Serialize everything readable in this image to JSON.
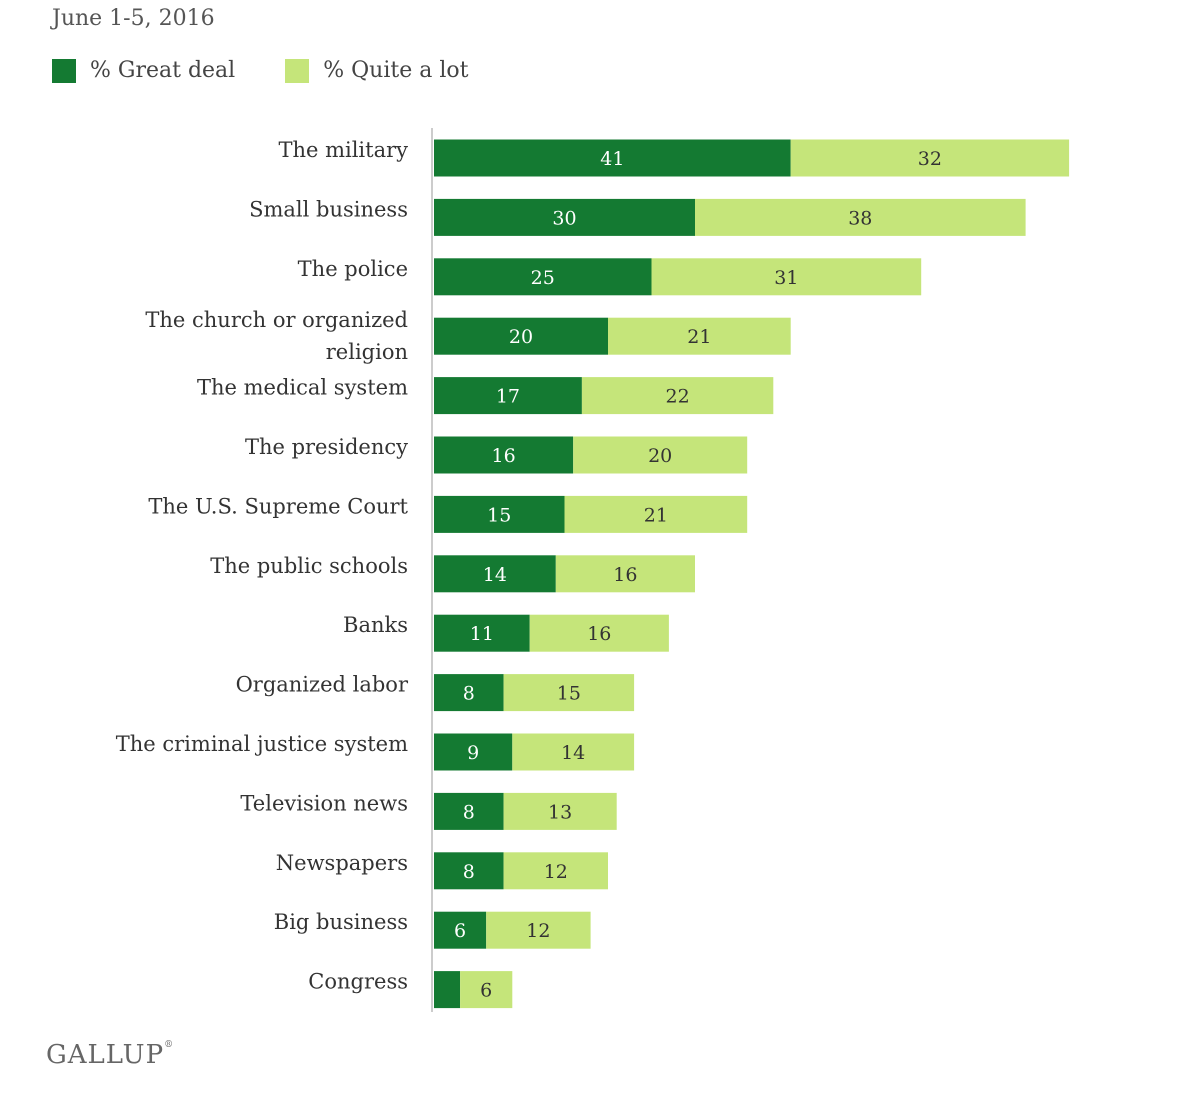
{
  "date_text": "June 1-5, 2016",
  "footer": {
    "brand": "GALLUP"
  },
  "colors": {
    "great_deal": "#147a32",
    "quite_a_lot": "#c5e57a",
    "axis": "#cccccc"
  },
  "chart_data": {
    "type": "bar",
    "orientation": "horizontal",
    "stacked": true,
    "categories": [
      [
        "The military"
      ],
      [
        "Small business"
      ],
      [
        "The police"
      ],
      [
        "The church or organized",
        "religion"
      ],
      [
        "The medical system"
      ],
      [
        "The presidency"
      ],
      [
        "The U.S. Supreme Court"
      ],
      [
        "The public schools"
      ],
      [
        "Banks"
      ],
      [
        "Organized labor"
      ],
      [
        "The criminal justice system"
      ],
      [
        "Television news"
      ],
      [
        "Newspapers"
      ],
      [
        "Big business"
      ],
      [
        "Congress"
      ]
    ],
    "series": [
      {
        "name": "% Great deal",
        "values": [
          41,
          30,
          25,
          20,
          17,
          16,
          15,
          14,
          11,
          8,
          9,
          8,
          8,
          6,
          3
        ]
      },
      {
        "name": "% Quite a lot",
        "values": [
          32,
          38,
          31,
          21,
          22,
          20,
          21,
          16,
          16,
          15,
          14,
          13,
          12,
          12,
          6
        ]
      }
    ],
    "labels_shown": [
      [
        "41",
        "30",
        "25",
        "20",
        "17",
        "16",
        "15",
        "14",
        "11",
        "8",
        "9",
        "8",
        "8",
        "6",
        ""
      ],
      [
        "32",
        "38",
        "31",
        "21",
        "22",
        "20",
        "21",
        "16",
        "16",
        "15",
        "14",
        "13",
        "12",
        "12",
        "6"
      ]
    ],
    "xlim": [
      0,
      75
    ],
    "title": "",
    "xlabel": "",
    "ylabel": ""
  }
}
